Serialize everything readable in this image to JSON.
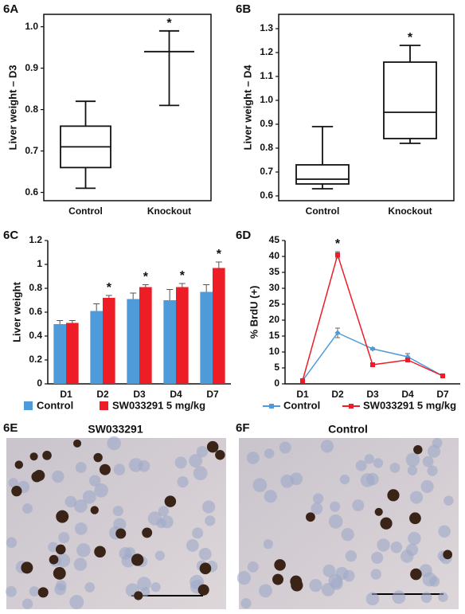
{
  "chart_data": [
    {
      "type": "box",
      "panel_label": "6A",
      "ylabel": "Liver weight – D3",
      "categories": [
        "Control",
        "Knockout"
      ],
      "boxes": [
        {
          "min": 0.61,
          "q1": 0.66,
          "median": 0.71,
          "q3": 0.76,
          "max": 0.82
        },
        {
          "min": 0.81,
          "q1": 0.94,
          "median": 0.94,
          "q3": 0.94,
          "max": 0.99
        }
      ],
      "significance": [
        null,
        "*"
      ],
      "color": "#111111",
      "ylim": [
        0.58,
        1.03
      ],
      "yticks": [
        0.6,
        0.7,
        0.8,
        0.9,
        {
          "value": 1,
          "label": "1.0"
        }
      ]
    },
    {
      "type": "box",
      "panel_label": "6B",
      "ylabel": "Liver weight – D4",
      "categories": [
        "Control",
        "Knockout"
      ],
      "boxes": [
        {
          "min": 0.63,
          "q1": 0.65,
          "median": 0.67,
          "q3": 0.73,
          "max": 0.89
        },
        {
          "min": 0.82,
          "q1": 0.84,
          "median": 0.95,
          "q3": 1.16,
          "max": 1.23
        }
      ],
      "significance": [
        null,
        "*"
      ],
      "color": "#111111",
      "ylim": [
        0.58,
        1.36
      ],
      "yticks": [
        0.6,
        0.7,
        0.8,
        0.9,
        {
          "value": 1,
          "label": "1.0"
        },
        1.1,
        1.2,
        1.3
      ]
    },
    {
      "type": "bar",
      "panel_label": "6C",
      "ylabel": "Liver weight",
      "categories": [
        "D1",
        "D2",
        "D3",
        "D4",
        "D7"
      ],
      "series": [
        {
          "name": "Control",
          "color": "#4f9ad8",
          "values": [
            0.5,
            0.61,
            0.71,
            0.7,
            0.77
          ],
          "errors": [
            0.03,
            0.06,
            0.05,
            0.09,
            0.06
          ]
        },
        {
          "name": "SW033291 5 mg/kg",
          "color": "#ee1c25",
          "values": [
            0.51,
            0.72,
            0.81,
            0.81,
            0.97
          ],
          "errors": [
            0.02,
            0.02,
            0.02,
            0.03,
            0.05
          ]
        }
      ],
      "significance": [
        null,
        "*",
        "*",
        "*",
        "*"
      ],
      "ylim": [
        0,
        1.2
      ],
      "yticks": [
        0,
        0.2,
        0.4,
        0.6,
        0.8,
        1,
        1.2
      ]
    },
    {
      "type": "line",
      "panel_label": "6D",
      "ylabel": "% BrdU (+)",
      "categories": [
        "D1",
        "D2",
        "D3",
        "D4",
        "D7"
      ],
      "series": [
        {
          "name": "Control",
          "color": "#4f9ad8",
          "values": [
            1,
            16,
            11,
            8.5,
            2.5
          ],
          "errors": [
            0.3,
            1.5,
            0.3,
            1,
            0.3
          ]
        },
        {
          "name": "SW033291 5 mg/kg",
          "color": "#ee1c25",
          "values": [
            1,
            40.5,
            6,
            7.5,
            2.5
          ],
          "errors": [
            0.3,
            1,
            0.3,
            0.5,
            0.3
          ]
        }
      ],
      "significance": [
        null,
        "*",
        null,
        null,
        null
      ],
      "ylim": [
        0,
        45
      ],
      "yticks": [
        0,
        5,
        10,
        15,
        20,
        25,
        30,
        35,
        40,
        45
      ]
    }
  ],
  "images": [
    {
      "panel_label": "6E",
      "title": "SW033291"
    },
    {
      "panel_label": "6F",
      "title": "Control"
    }
  ]
}
